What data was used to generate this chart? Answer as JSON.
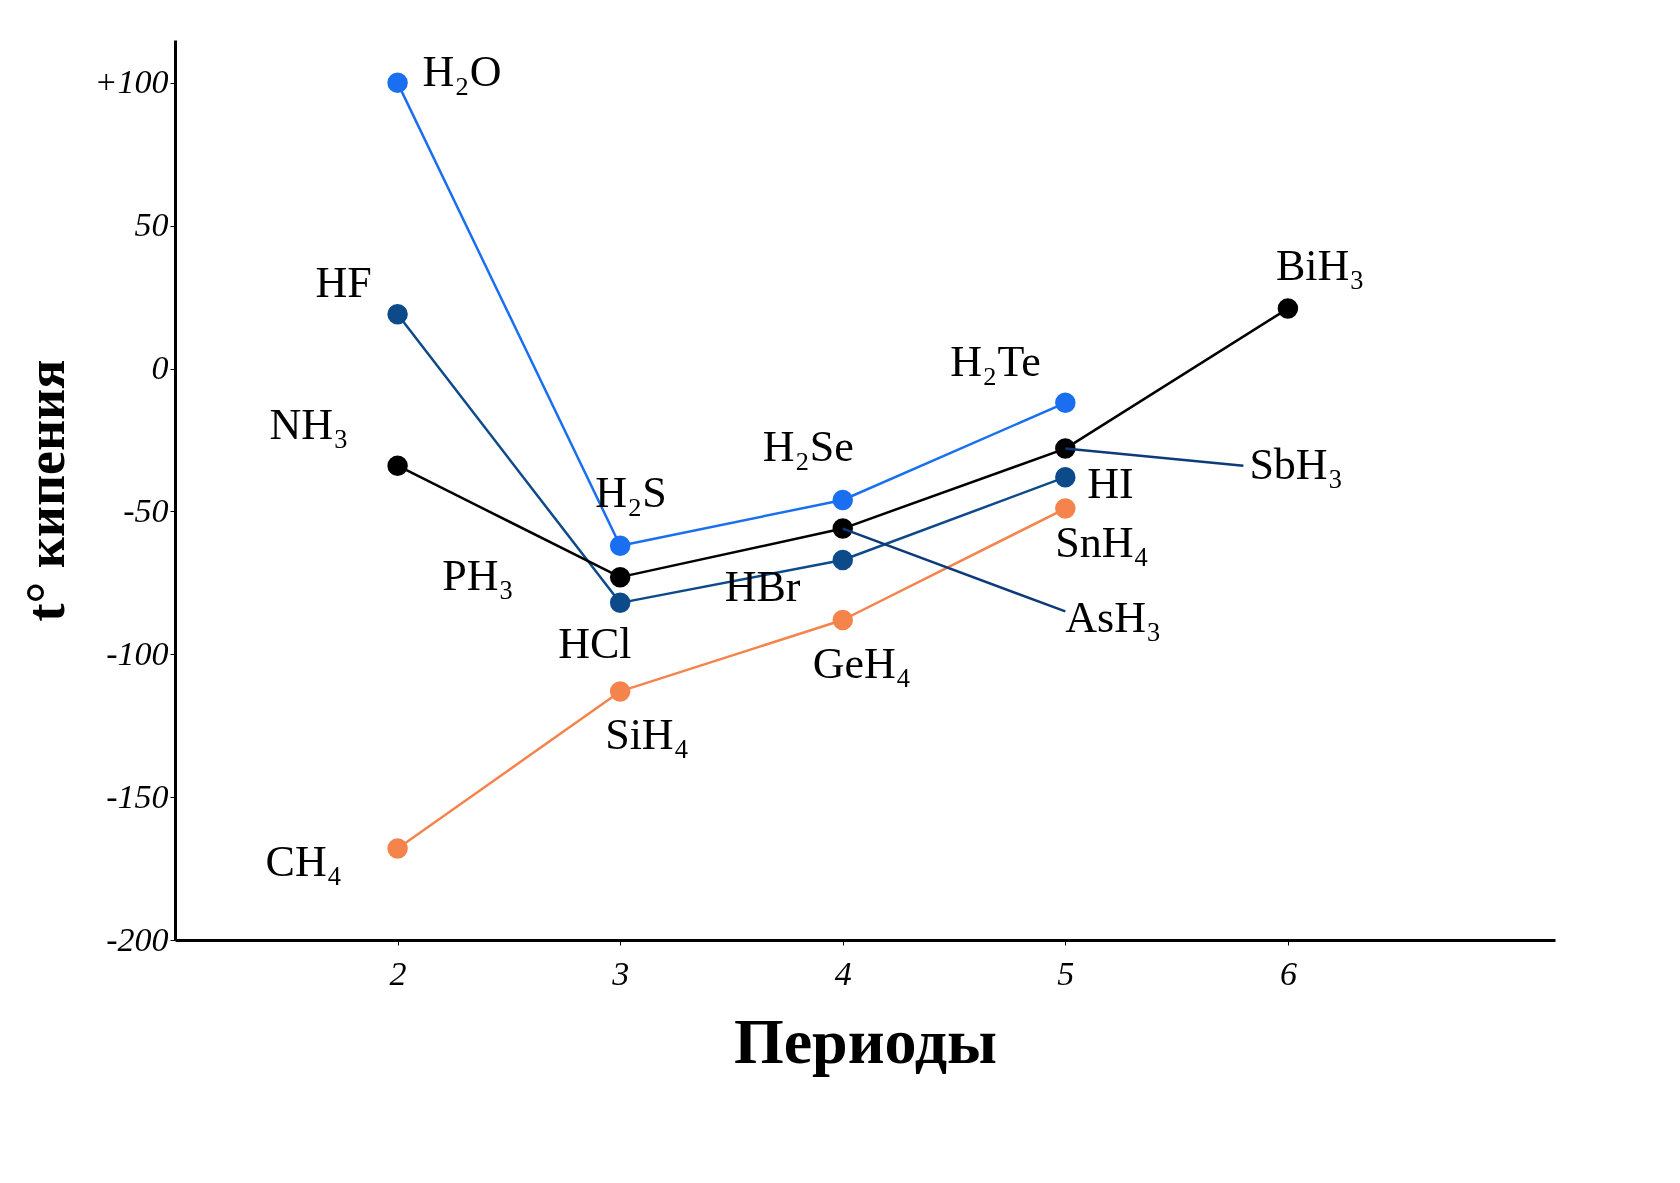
{
  "chart_data": {
    "type": "line",
    "xlabel": "Периоды",
    "ylabel": "t° кипения",
    "xlim": [
      1,
      7.2
    ],
    "xticks": [
      2,
      3,
      4,
      5,
      6
    ],
    "ylim": [
      -200,
      115
    ],
    "yticks": [
      {
        "value": 100,
        "label": "+100"
      },
      50,
      0,
      -50,
      -100,
      -150,
      -200
    ],
    "grid": false,
    "marker": "circle",
    "series": [
      {
        "color": "#1a6ff0",
        "x": [
          2,
          3,
          4,
          5
        ],
        "values": [
          100,
          -62,
          -46,
          -12
        ]
      },
      {
        "color": "#0d4a8a",
        "x": [
          2,
          3,
          4,
          5
        ],
        "values": [
          19,
          -82,
          -67,
          -38
        ]
      },
      {
        "color": "#000000",
        "x": [
          2,
          3,
          4,
          5,
          6
        ],
        "values": [
          -34,
          -73,
          -56,
          -28,
          21
        ]
      },
      {
        "color": "#f5844c",
        "x": [
          2,
          3,
          4,
          5
        ],
        "values": [
          -168,
          -113,
          -88,
          -49
        ]
      },
      {
        "color": "#0d3a7a",
        "marker": "none",
        "x": [
          4,
          5
        ],
        "values": [
          -56,
          -85
        ]
      },
      {
        "color": "#0d3a7a",
        "marker": "none",
        "x": [
          5,
          5.8
        ],
        "values": [
          -28,
          -34
        ]
      }
    ],
    "annotations": [
      {
        "text": "H₂O",
        "x": 2,
        "y": 100
      },
      {
        "text": "H₂S",
        "x": 3,
        "y": -62
      },
      {
        "text": "H₂Se",
        "x": 4,
        "y": -46
      },
      {
        "text": "H₂Te",
        "x": 5,
        "y": -12
      },
      {
        "text": "HF",
        "x": 2,
        "y": 19
      },
      {
        "text": "HCl",
        "x": 3,
        "y": -82
      },
      {
        "text": "HBr",
        "x": 4,
        "y": -67
      },
      {
        "text": "HI",
        "x": 5,
        "y": -38
      },
      {
        "text": "NH₃",
        "x": 2,
        "y": -34
      },
      {
        "text": "PH₃",
        "x": 3,
        "y": -73
      },
      {
        "text": "AsH₃",
        "x": 5,
        "y": -85
      },
      {
        "text": "SbH₃",
        "x": 5.8,
        "y": -34
      },
      {
        "text": "BiH₃",
        "x": 6,
        "y": 21
      },
      {
        "text": "CH₄",
        "x": 2,
        "y": -168
      },
      {
        "text": "SiH₄",
        "x": 3,
        "y": -113
      },
      {
        "text": "GeH₄",
        "x": 4,
        "y": -88
      },
      {
        "text": "SnH₄",
        "x": 5,
        "y": -49
      }
    ]
  }
}
